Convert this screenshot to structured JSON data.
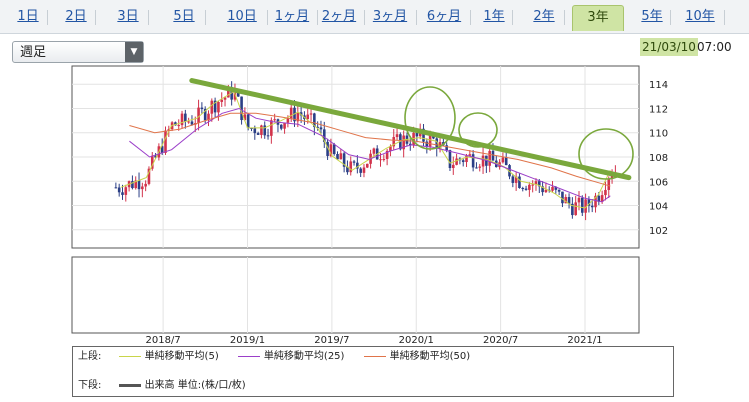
{
  "tabs": [
    {
      "label": "1日",
      "active": false
    },
    {
      "label": "2日",
      "active": false
    },
    {
      "label": "3日",
      "active": false
    },
    {
      "label": "5日",
      "active": false
    },
    {
      "label": "10日",
      "active": false
    },
    {
      "label": "1ヶ月",
      "active": false
    },
    {
      "label": "2ヶ月",
      "active": false
    },
    {
      "label": "3ヶ月",
      "active": false
    },
    {
      "label": "6ヶ月",
      "active": false
    },
    {
      "label": "1年",
      "active": false
    },
    {
      "label": "2年",
      "active": false
    },
    {
      "label": "3年",
      "active": true
    },
    {
      "label": "5年",
      "active": false
    },
    {
      "label": "10年",
      "active": false
    }
  ],
  "period_select": {
    "value": "週足"
  },
  "datetime": {
    "date": "21/03/10",
    "time": "07:00"
  },
  "colors": {
    "up_candle": "#d2334b",
    "down_candle": "#2b3f86",
    "ma5": "#c9d54a",
    "ma25": "#9b3fc9",
    "ma50": "#e0744a",
    "annotation": "#7aa83c",
    "active_tab": "#cfe4a4"
  },
  "legend": {
    "upper_label": "上段:",
    "lower_label": "下段:",
    "ma5_label": "単純移動平均(5)",
    "ma25_label": "単純移動平均(25)",
    "ma50_label": "単純移動平均(50)",
    "volume_label": "出来高 単位:(株/口/枚)"
  },
  "chart_data": {
    "type": "candlestick",
    "y_ticks": [
      102,
      104,
      106,
      108,
      110,
      112,
      114
    ],
    "ylim": [
      100.5,
      115.5
    ],
    "x_tick_labels": [
      "2018/7",
      "2019/1",
      "2019/7",
      "2020/1",
      "2020/7",
      "2021/1"
    ],
    "x_tick_positions": [
      2018.5,
      2019.0,
      2019.5,
      2020.0,
      2020.5,
      2021.0
    ],
    "xlim": [
      2017.96,
      2021.32
    ],
    "grid": true,
    "series": [
      {
        "name": "単純移動平均(5)",
        "points": [
          [
            2018.25,
            105.5
          ],
          [
            2018.4,
            106.3
          ],
          [
            2018.55,
            110.6
          ],
          [
            2018.7,
            111.2
          ],
          [
            2018.8,
            112.4
          ],
          [
            2018.92,
            113.4
          ],
          [
            2019.0,
            110.4
          ],
          [
            2019.1,
            110.4
          ],
          [
            2019.2,
            111.0
          ],
          [
            2019.3,
            111.7
          ],
          [
            2019.42,
            110.3
          ],
          [
            2019.5,
            108.1
          ],
          [
            2019.62,
            106.9
          ],
          [
            2019.72,
            107.8
          ],
          [
            2019.82,
            108.7
          ],
          [
            2019.92,
            109.4
          ],
          [
            2020.02,
            109.6
          ],
          [
            2020.12,
            109.3
          ],
          [
            2020.2,
            107.5
          ],
          [
            2020.3,
            108.0
          ],
          [
            2020.42,
            107.8
          ],
          [
            2020.52,
            107.2
          ],
          [
            2020.62,
            106.0
          ],
          [
            2020.72,
            105.7
          ],
          [
            2020.82,
            105.0
          ],
          [
            2020.92,
            104.0
          ],
          [
            2021.0,
            103.8
          ],
          [
            2021.08,
            104.9
          ],
          [
            2021.15,
            106.9
          ]
        ]
      },
      {
        "name": "単純移動平均(25)",
        "points": [
          [
            2018.3,
            109.3
          ],
          [
            2018.42,
            108.0
          ],
          [
            2018.55,
            108.6
          ],
          [
            2018.7,
            110.3
          ],
          [
            2018.85,
            111.6
          ],
          [
            2018.95,
            112.0
          ],
          [
            2019.05,
            111.2
          ],
          [
            2019.15,
            110.9
          ],
          [
            2019.3,
            110.7
          ],
          [
            2019.45,
            109.7
          ],
          [
            2019.6,
            108.2
          ],
          [
            2019.72,
            107.8
          ],
          [
            2019.85,
            108.5
          ],
          [
            2019.97,
            109.0
          ],
          [
            2020.1,
            108.8
          ],
          [
            2020.25,
            108.3
          ],
          [
            2020.42,
            107.7
          ],
          [
            2020.55,
            107.0
          ],
          [
            2020.7,
            106.2
          ],
          [
            2020.85,
            105.4
          ],
          [
            2021.0,
            104.6
          ],
          [
            2021.1,
            104.3
          ],
          [
            2021.15,
            104.8
          ]
        ]
      },
      {
        "name": "単純移動平均(50)",
        "points": [
          [
            2018.3,
            110.6
          ],
          [
            2018.45,
            110.0
          ],
          [
            2018.6,
            110.3
          ],
          [
            2018.75,
            111.0
          ],
          [
            2018.9,
            111.6
          ],
          [
            2019.05,
            111.6
          ],
          [
            2019.2,
            111.3
          ],
          [
            2019.4,
            110.8
          ],
          [
            2019.55,
            110.2
          ],
          [
            2019.7,
            109.6
          ],
          [
            2019.85,
            109.4
          ],
          [
            2020.0,
            109.3
          ],
          [
            2020.2,
            108.8
          ],
          [
            2020.4,
            108.3
          ],
          [
            2020.6,
            107.8
          ],
          [
            2020.8,
            107.1
          ],
          [
            2020.95,
            106.4
          ],
          [
            2021.1,
            105.8
          ],
          [
            2021.15,
            105.6
          ]
        ]
      }
    ],
    "annotations": {
      "trendline": [
        [
          2018.67,
          114.3
        ],
        [
          2021.26,
          106.3
        ]
      ]
    }
  }
}
